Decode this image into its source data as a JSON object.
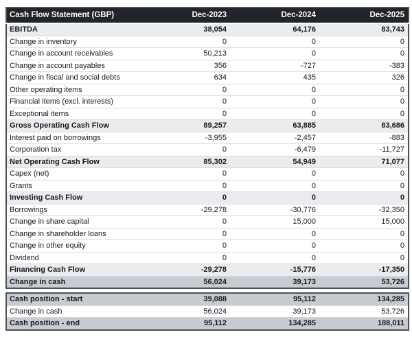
{
  "table": {
    "title": "Cash Flow Statement (GBP)",
    "columns": [
      "Dec-2023",
      "Dec-2024",
      "Dec-2025"
    ],
    "colors": {
      "header_bg": "#212429",
      "header_text": "#ffffff",
      "subtotal_row_bg": "#eaecef",
      "highlight_row_bg": "#c7ccd3",
      "row_border": "#d8dadd",
      "outer_border": "#4b4f55",
      "body_text": "#16181a"
    },
    "rows": [
      {
        "label": "EBITDA",
        "values": [
          "38,054",
          "64,176",
          "83,743"
        ],
        "style": "subtotal"
      },
      {
        "label": "Change in inventory",
        "values": [
          "0",
          "0",
          "0"
        ],
        "style": "normal"
      },
      {
        "label": "Change in account receivables",
        "values": [
          "50,213",
          "0",
          "0"
        ],
        "style": "normal"
      },
      {
        "label": "Change in account payables",
        "values": [
          "356",
          "-727",
          "-383"
        ],
        "style": "normal"
      },
      {
        "label": "Change in fiscal and social debts",
        "values": [
          "634",
          "435",
          "326"
        ],
        "style": "normal"
      },
      {
        "label": "Other operating items",
        "values": [
          "0",
          "0",
          "0"
        ],
        "style": "normal"
      },
      {
        "label": "Financial items (excl. interests)",
        "values": [
          "0",
          "0",
          "0"
        ],
        "style": "normal"
      },
      {
        "label": "Exceptional items",
        "values": [
          "0",
          "0",
          "0"
        ],
        "style": "normal"
      },
      {
        "label": "Gross Operating Cash Flow",
        "values": [
          "89,257",
          "63,885",
          "83,686"
        ],
        "style": "subtotal"
      },
      {
        "label": "Interest paid on borrowings",
        "values": [
          "-3,955",
          "-2,457",
          "-883"
        ],
        "style": "normal"
      },
      {
        "label": "Corporation tax",
        "values": [
          "0",
          "-6,479",
          "-11,727"
        ],
        "style": "normal"
      },
      {
        "label": "Net Operating Cash Flow",
        "values": [
          "85,302",
          "54,949",
          "71,077"
        ],
        "style": "subtotal"
      },
      {
        "label": "Capex (net)",
        "values": [
          "0",
          "0",
          "0"
        ],
        "style": "normal"
      },
      {
        "label": "Grants",
        "values": [
          "0",
          "0",
          "0"
        ],
        "style": "normal"
      },
      {
        "label": "Investing Cash Flow",
        "values": [
          "0",
          "0",
          "0"
        ],
        "style": "subtotal"
      },
      {
        "label": "Borrowings",
        "values": [
          "-29,278",
          "-30,776",
          "-32,350"
        ],
        "style": "normal"
      },
      {
        "label": "Change in share capital",
        "values": [
          "0",
          "15,000",
          "15,000"
        ],
        "style": "normal"
      },
      {
        "label": "Change in shareholder loans",
        "values": [
          "0",
          "0",
          "0"
        ],
        "style": "normal"
      },
      {
        "label": "Change in other equity",
        "values": [
          "0",
          "0",
          "0"
        ],
        "style": "normal"
      },
      {
        "label": "Dividend",
        "values": [
          "0",
          "0",
          "0"
        ],
        "style": "normal"
      },
      {
        "label": "Financing Cash Flow",
        "values": [
          "-29,278",
          "-15,776",
          "-17,350"
        ],
        "style": "subtotal"
      },
      {
        "label": "Change in cash",
        "values": [
          "56,024",
          "39,173",
          "53,726"
        ],
        "style": "highlight"
      }
    ],
    "summary_rows": [
      {
        "label": "Cash position - start",
        "values": [
          "39,088",
          "95,112",
          "134,285"
        ],
        "style": "highlight"
      },
      {
        "label": "Change in cash",
        "values": [
          "56,024",
          "39,173",
          "53,726"
        ],
        "style": "normal"
      },
      {
        "label": "Cash position - end",
        "values": [
          "95,112",
          "134,285",
          "188,011"
        ],
        "style": "highlight"
      }
    ]
  }
}
